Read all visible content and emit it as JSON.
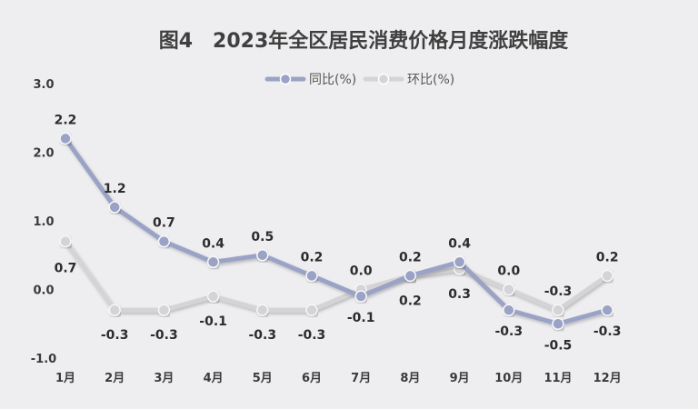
{
  "chart_data": {
    "type": "line",
    "title": "图4　2023年全区居民消费价格月度涨跌幅度",
    "categories": [
      "1月",
      "2月",
      "3月",
      "4月",
      "5月",
      "6月",
      "7月",
      "8月",
      "9月",
      "10月",
      "11月",
      "12月"
    ],
    "series": [
      {
        "name": "同比(%)",
        "values": [
          2.2,
          1.2,
          0.7,
          0.4,
          0.5,
          0.2,
          -0.1,
          0.2,
          0.4,
          -0.3,
          -0.5,
          -0.3
        ],
        "color": "#9aa3c6"
      },
      {
        "name": "环比(%)",
        "values": [
          0.7,
          -0.3,
          -0.3,
          -0.1,
          -0.3,
          -0.3,
          0.0,
          0.2,
          0.3,
          0.0,
          -0.3,
          0.2
        ],
        "color": "#d4d4d6"
      }
    ],
    "yticks": [
      "3.0",
      "2.0",
      "1.0",
      "0.0",
      "-1.0"
    ],
    "ylim": [
      -1.0,
      3.0
    ],
    "grid": false,
    "legend": "top-center"
  }
}
